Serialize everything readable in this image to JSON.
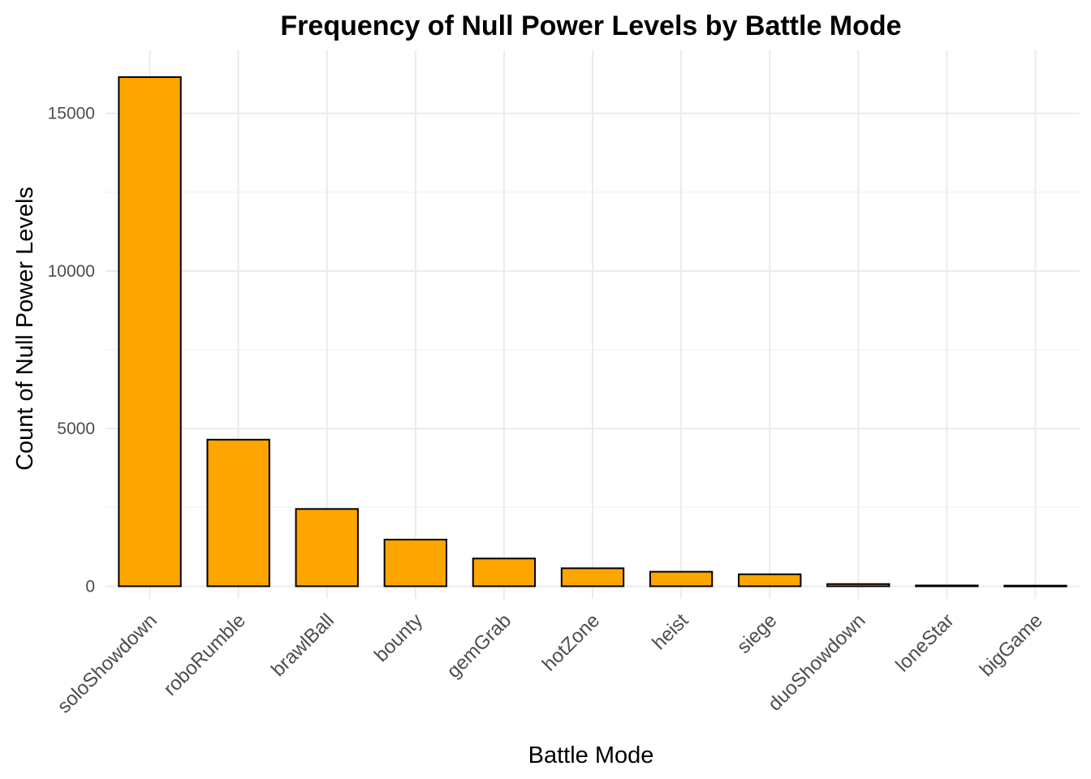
{
  "chart_data": {
    "type": "bar",
    "title": "Frequency of Null Power Levels by Battle Mode",
    "xlabel": "Battle Mode",
    "ylabel": "Count of Null Power Levels",
    "categories": [
      "soloShowdown",
      "roboRumble",
      "brawlBall",
      "bounty",
      "gemGrab",
      "hotZone",
      "heist",
      "siege",
      "duoShowdown",
      "loneStar",
      "bigGame"
    ],
    "values": [
      16150,
      4650,
      2450,
      1480,
      880,
      570,
      460,
      380,
      70,
      25,
      20
    ],
    "ylim": [
      -400,
      17000
    ],
    "yticks": [
      0,
      5000,
      10000,
      15000
    ],
    "ytick_labels": [
      "0",
      "5000",
      "10000",
      "15000"
    ],
    "grid": true,
    "legend": "none",
    "bar_color": "#FFA500",
    "bar_border_color": "#000000"
  }
}
